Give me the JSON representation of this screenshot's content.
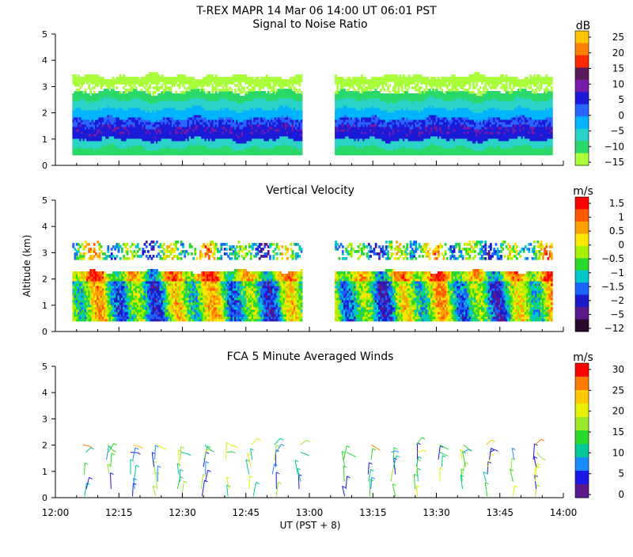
{
  "header": {
    "title": "T-REX   MAPR 14 Mar 06   14:00 UT   06:01   PST"
  },
  "x_axis": {
    "label": "UT  (PST + 8)",
    "ticks": [
      "12:00",
      "12:15",
      "12:30",
      "12:45",
      "13:00",
      "13:15",
      "13:30",
      "13:45",
      "14:00"
    ],
    "range_minutes": [
      0,
      120
    ]
  },
  "y_axis": {
    "label": "Altitude (km)",
    "ticks": [
      "0",
      "1",
      "2",
      "3",
      "4",
      "5"
    ],
    "range_km": [
      0,
      5
    ]
  },
  "panels": [
    {
      "title": "Signal to Noise Ratio",
      "unit": "dB",
      "colorbar": {
        "labels": [
          "25",
          "20",
          "15",
          "10",
          "5",
          "0",
          "−5",
          "−10",
          "−15"
        ],
        "colors": [
          "#ffc400",
          "#ff8000",
          "#ff2a00",
          "#5a1a5a",
          "#7a1aa8",
          "#1a1ad8",
          "#2a64ff",
          "#00b4ff",
          "#2ad2c8",
          "#2ad86a",
          "#a8ff3a"
        ]
      }
    },
    {
      "title": "Vertical Velocity",
      "unit": "m/s",
      "colorbar": {
        "labels": [
          "1.5",
          "1",
          "0.5",
          "0",
          "−0.5",
          "−1",
          "−1.5",
          "−2",
          "−5",
          "−12"
        ],
        "colors": [
          "#ff0000",
          "#ff5a00",
          "#ffa000",
          "#ffe600",
          "#a8f000",
          "#2ad82a",
          "#00c8c8",
          "#1a64ff",
          "#1a1ac8",
          "#5a1a8c",
          "#2a0a2a"
        ]
      }
    },
    {
      "title": "FCA 5 Minute Averaged Winds",
      "unit": "m/s",
      "colorbar": {
        "labels": [
          "30",
          "25",
          "20",
          "15",
          "10",
          "5",
          "0"
        ],
        "colors": [
          "#ff0000",
          "#ff7a00",
          "#ffc800",
          "#e6f000",
          "#9ae62a",
          "#2ad82a",
          "#00c896",
          "#1a8cff",
          "#1a1ae6",
          "#5a1a8c"
        ]
      }
    }
  ],
  "chart_data": [
    {
      "type": "heatmap",
      "title": "Signal to Noise Ratio",
      "unit": "dB",
      "x": "time UT 12:00–14:00",
      "y": "altitude 0–5 km",
      "data_gap": [
        "12:58",
        "13:06"
      ],
      "layers_by_altitude_km": [
        {
          "alt": [
            0.4,
            0.9
          ],
          "value_dB": -10
        },
        {
          "alt": [
            0.9,
            1.7
          ],
          "value_dB": 0
        },
        {
          "alt": [
            1.7,
            2.4
          ],
          "value_dB": -5
        },
        {
          "alt": [
            2.4,
            3.4
          ],
          "value_dB": -15
        }
      ]
    },
    {
      "type": "heatmap",
      "title": "Vertical Velocity",
      "unit": "m/s",
      "x": "time UT 12:00–14:00",
      "y": "altitude 0–5 km",
      "data_gap": [
        "12:58",
        "13:06"
      ],
      "data_top_km": 3.4
    },
    {
      "type": "scatter",
      "title": "FCA 5 Minute Averaged Winds",
      "unit": "m/s",
      "x": "time UT 12:00–14:00",
      "y": "altitude 0–2.5 km",
      "data_gap": [
        "12:59",
        "13:04"
      ],
      "speed_range_ms": [
        5,
        30
      ]
    }
  ]
}
